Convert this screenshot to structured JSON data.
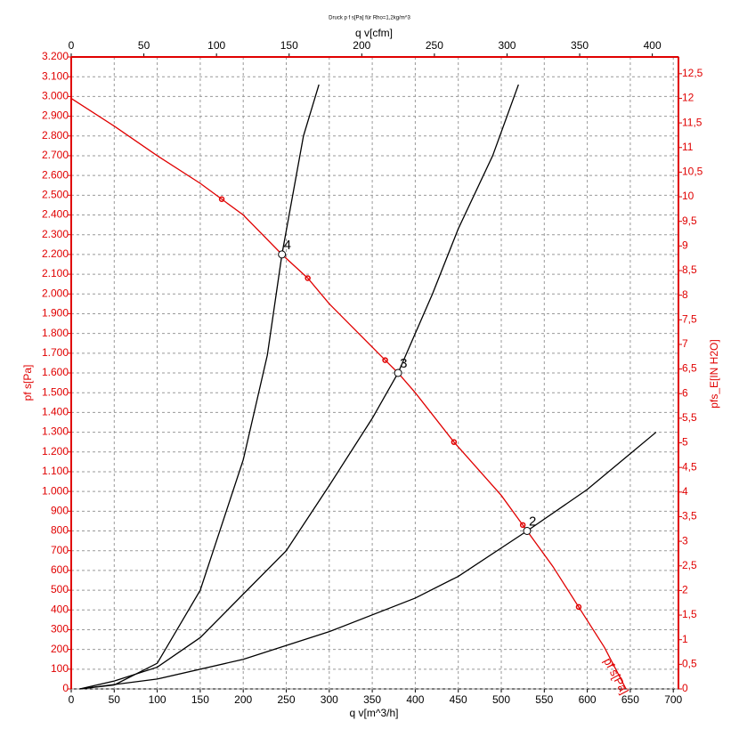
{
  "chart_data": {
    "type": "line",
    "title": "Druck p f s[Pa] für Rho=1,2kg/m^3",
    "x_label": "q v[m^3/h]",
    "x2_label": "q v[cfm]",
    "y_label": "pf s[Pa]",
    "y2_label": "pfs_E[IN H2O]",
    "xlim": [
      0,
      706
    ],
    "xticks": [
      0,
      50,
      100,
      150,
      200,
      250,
      300,
      350,
      400,
      450,
      500,
      550,
      600,
      650,
      700
    ],
    "x2lim": [
      0,
      418
    ],
    "x2ticks": [
      0,
      50,
      100,
      150,
      200,
      250,
      300,
      350,
      400
    ],
    "ylim": [
      0,
      3200
    ],
    "yticks": [
      0,
      100,
      200,
      300,
      400,
      500,
      600,
      700,
      800,
      900,
      {
        "value": 1000,
        "label": "1.000"
      },
      {
        "value": 1100,
        "label": "1.100"
      },
      {
        "value": 1200,
        "label": "1.200"
      },
      {
        "value": 1300,
        "label": "1.300"
      },
      {
        "value": 1400,
        "label": "1.400"
      },
      {
        "value": 1500,
        "label": "1.500"
      },
      {
        "value": 1600,
        "label": "1.600"
      },
      {
        "value": 1700,
        "label": "1.700"
      },
      {
        "value": 1800,
        "label": "1.800"
      },
      {
        "value": 1900,
        "label": "1.900"
      },
      {
        "value": 2000,
        "label": "2.000"
      },
      {
        "value": 2100,
        "label": "2.100"
      },
      {
        "value": 2200,
        "label": "2.200"
      },
      {
        "value": 2300,
        "label": "2.300"
      },
      {
        "value": 2400,
        "label": "2.400"
      },
      {
        "value": 2500,
        "label": "2.500"
      },
      {
        "value": 2600,
        "label": "2.600"
      },
      {
        "value": 2700,
        "label": "2.700"
      },
      {
        "value": 2800,
        "label": "2.800"
      },
      {
        "value": 2900,
        "label": "2.900"
      },
      {
        "value": 3000,
        "label": "3.000"
      },
      {
        "value": 3100,
        "label": "3.100"
      },
      {
        "value": 3200,
        "label": "3.200"
      }
    ],
    "y2lim": [
      0,
      12.84
    ],
    "y2ticks": [
      0,
      {
        "value": 0.5,
        "label": "0,5"
      },
      1,
      {
        "value": 1.5,
        "label": "1,5"
      },
      2,
      {
        "value": 2.5,
        "label": "2,5"
      },
      3,
      {
        "value": 3.5,
        "label": "3,5"
      },
      4,
      {
        "value": 4.5,
        "label": "4,5"
      },
      5,
      {
        "value": 5.5,
        "label": "5,5"
      },
      6,
      {
        "value": 6.5,
        "label": "6,5"
      },
      7,
      {
        "value": 7.5,
        "label": "7,5"
      },
      8,
      {
        "value": 8.5,
        "label": "8,5"
      },
      9,
      {
        "value": 9.5,
        "label": "9,5"
      },
      10,
      {
        "value": 10.5,
        "label": "10,5"
      },
      11,
      {
        "value": 11.5,
        "label": "11,5"
      },
      12,
      {
        "value": 12.5,
        "label": "12,5"
      }
    ],
    "grid": true,
    "series": [
      {
        "color": "#e00000",
        "x": [
          0,
          50,
          100,
          150,
          175,
          200,
          245,
          275,
          300,
          365,
          380,
          400,
          445,
          500,
          525,
          530,
          560,
          590,
          620,
          645
        ],
        "values": [
          2990,
          2850,
          2700,
          2560,
          2480,
          2400,
          2200,
          2080,
          1950,
          1665,
          1600,
          1500,
          1250,
          980,
          830,
          800,
          620,
          415,
          210,
          0
        ]
      },
      {
        "color": "#000000",
        "x": [
          10,
          50,
          100,
          150,
          200,
          228,
          245,
          270,
          288
        ],
        "values": [
          0,
          20,
          130,
          500,
          1160,
          1690,
          2200,
          2800,
          3060
        ]
      },
      {
        "color": "#000000",
        "x": [
          10,
          50,
          100,
          150,
          200,
          250,
          300,
          350,
          380,
          420,
          450,
          490,
          520
        ],
        "values": [
          0,
          40,
          110,
          260,
          480,
          700,
          1030,
          1370,
          1600,
          2000,
          2330,
          2700,
          3060
        ]
      },
      {
        "color": "#000000",
        "x": [
          10,
          100,
          200,
          300,
          400,
          450,
          530,
          600,
          680
        ],
        "values": [
          0,
          50,
          150,
          290,
          460,
          570,
          800,
          1010,
          1300
        ]
      }
    ],
    "markers": {
      "color": "#e00000",
      "x": [
        175,
        275,
        365,
        445,
        525,
        590
      ],
      "values": [
        2480,
        2080,
        1665,
        1250,
        830,
        415
      ]
    },
    "points": [
      {
        "label": "4",
        "x": 245,
        "y": 2200
      },
      {
        "label": "3",
        "x": 380,
        "y": 1600
      },
      {
        "label": "2",
        "x": 530,
        "y": 800
      }
    ],
    "curve_label": "pf s[Pa]"
  }
}
